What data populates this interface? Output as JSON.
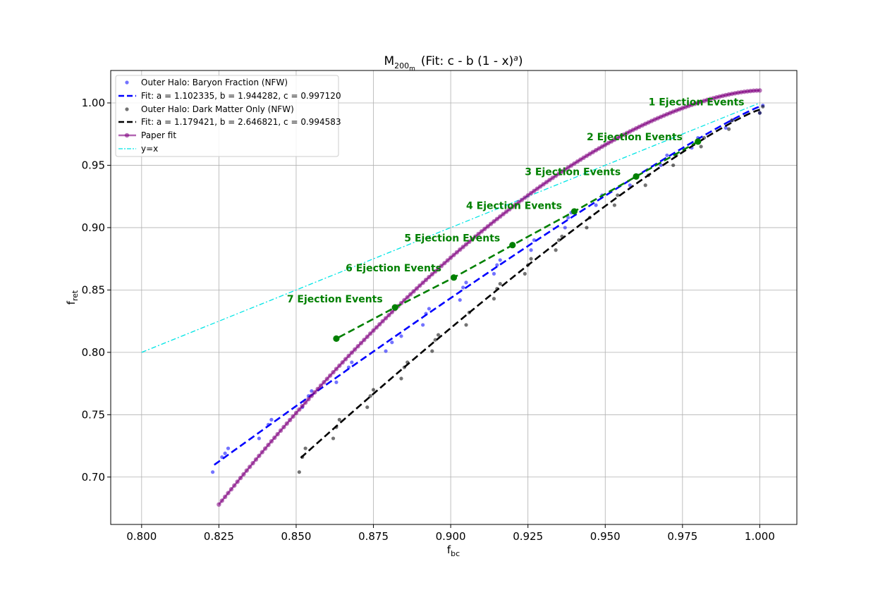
{
  "chart_data": {
    "type": "scatter",
    "title_main": "M",
    "title_sub": "200",
    "title_subsub": "m",
    "title_fit": "(Fit: c - b (1 - x)",
    "title_exp": "a",
    "title_close": ")",
    "xlabel_main": "f",
    "xlabel_sub": "bc",
    "ylabel_main": "f",
    "ylabel_sub": "ret",
    "xlim": [
      0.79,
      1.012
    ],
    "ylim": [
      0.662,
      1.026
    ],
    "xticks": [
      0.8,
      0.825,
      0.85,
      0.875,
      0.9,
      0.925,
      0.95,
      0.975,
      1.0
    ],
    "xtick_labels": [
      "0.800",
      "0.825",
      "0.850",
      "0.875",
      "0.900",
      "0.925",
      "0.950",
      "0.975",
      "1.000"
    ],
    "yticks": [
      0.7,
      0.75,
      0.8,
      0.85,
      0.9,
      0.95,
      1.0
    ],
    "ytick_labels": [
      "0.70",
      "0.75",
      "0.80",
      "0.85",
      "0.90",
      "0.95",
      "1.00"
    ],
    "grid": true,
    "legend_placement": "upper-left",
    "colors": {
      "baryon": "#0000ff",
      "dmo": "#000000",
      "paper": "#800080",
      "identity": "#00e5e5",
      "ejection": "#008000",
      "grid": "#b0b0b0"
    },
    "series": [
      {
        "name": "Outer Halo: Baryon Fraction (NFW)",
        "kind": "points",
        "x": [
          0.823,
          0.826,
          0.827,
          0.828,
          0.838,
          0.841,
          0.842,
          0.852,
          0.854,
          0.855,
          0.863,
          0.867,
          0.868,
          0.879,
          0.881,
          0.884,
          0.891,
          0.892,
          0.893,
          0.903,
          0.904,
          0.905,
          0.914,
          0.915,
          0.916,
          0.926,
          0.927,
          0.937,
          0.938,
          0.939,
          0.947,
          0.949,
          0.958,
          0.96,
          0.968,
          0.97,
          0.978,
          0.98,
          0.989,
          0.991,
          1.0,
          1.001
        ],
        "y": [
          0.704,
          0.716,
          0.719,
          0.723,
          0.731,
          0.742,
          0.746,
          0.756,
          0.765,
          0.769,
          0.776,
          0.788,
          0.792,
          0.801,
          0.808,
          0.813,
          0.822,
          0.831,
          0.835,
          0.842,
          0.852,
          0.856,
          0.863,
          0.87,
          0.874,
          0.882,
          0.89,
          0.9,
          0.908,
          0.912,
          0.918,
          0.926,
          0.934,
          0.942,
          0.95,
          0.958,
          0.964,
          0.972,
          0.98,
          0.986,
          0.992,
          0.998
        ]
      },
      {
        "name": "Fit: a = 1.102335, b = 1.944282, c = 0.997120",
        "kind": "fit",
        "a": 1.102335,
        "b": 1.944282,
        "c": 0.99712,
        "x_range": [
          0.8235,
          1.0
        ]
      },
      {
        "name": "Outer Halo: Dark Matter Only (NFW)",
        "kind": "points",
        "x": [
          0.851,
          0.852,
          0.853,
          0.862,
          0.863,
          0.864,
          0.873,
          0.874,
          0.875,
          0.884,
          0.885,
          0.886,
          0.894,
          0.895,
          0.896,
          0.905,
          0.906,
          0.914,
          0.915,
          0.916,
          0.924,
          0.925,
          0.926,
          0.934,
          0.935,
          0.936,
          0.944,
          0.945,
          0.953,
          0.954,
          0.963,
          0.964,
          0.972,
          0.973,
          0.981,
          0.982,
          0.99,
          0.991,
          1.0,
          1.001
        ],
        "y": [
          0.704,
          0.716,
          0.723,
          0.731,
          0.74,
          0.746,
          0.756,
          0.765,
          0.77,
          0.779,
          0.788,
          0.792,
          0.801,
          0.81,
          0.814,
          0.822,
          0.832,
          0.843,
          0.851,
          0.855,
          0.863,
          0.87,
          0.875,
          0.882,
          0.89,
          0.893,
          0.9,
          0.908,
          0.918,
          0.926,
          0.934,
          0.942,
          0.95,
          0.958,
          0.965,
          0.972,
          0.979,
          0.986,
          0.992,
          0.997
        ]
      },
      {
        "name": "Fit: a = 1.179421, b = 2.646821, c = 0.994583",
        "kind": "fit",
        "a": 1.179421,
        "b": 2.646821,
        "c": 0.994583,
        "x_range": [
          0.8515,
          1.0
        ]
      },
      {
        "name": "Paper fit",
        "kind": "curve",
        "x_range": [
          0.825,
          1.0
        ],
        "y_start": 0.678,
        "y_end": 1.01,
        "shape_exponent": 1.62
      },
      {
        "name": "y=x",
        "kind": "identity",
        "x_range": [
          0.8,
          1.0
        ]
      }
    ],
    "ejection_events": {
      "x": [
        0.98,
        0.96,
        0.94,
        0.92,
        0.901,
        0.882,
        0.863
      ],
      "y": [
        0.969,
        0.941,
        0.913,
        0.886,
        0.86,
        0.836,
        0.811
      ],
      "labels": [
        "1 Ejection Events",
        "2 Ejection Events",
        "3 Ejection Events",
        "4 Ejection Events",
        "5 Ejection Events",
        "6 Ejection Events",
        "7 Ejection Events"
      ],
      "label_pos": [
        [
          0.964,
          0.998
        ],
        [
          0.944,
          0.97
        ],
        [
          0.924,
          0.942
        ],
        [
          0.905,
          0.915
        ],
        [
          0.885,
          0.889
        ],
        [
          0.866,
          0.865
        ],
        [
          0.847,
          0.84
        ]
      ]
    }
  }
}
